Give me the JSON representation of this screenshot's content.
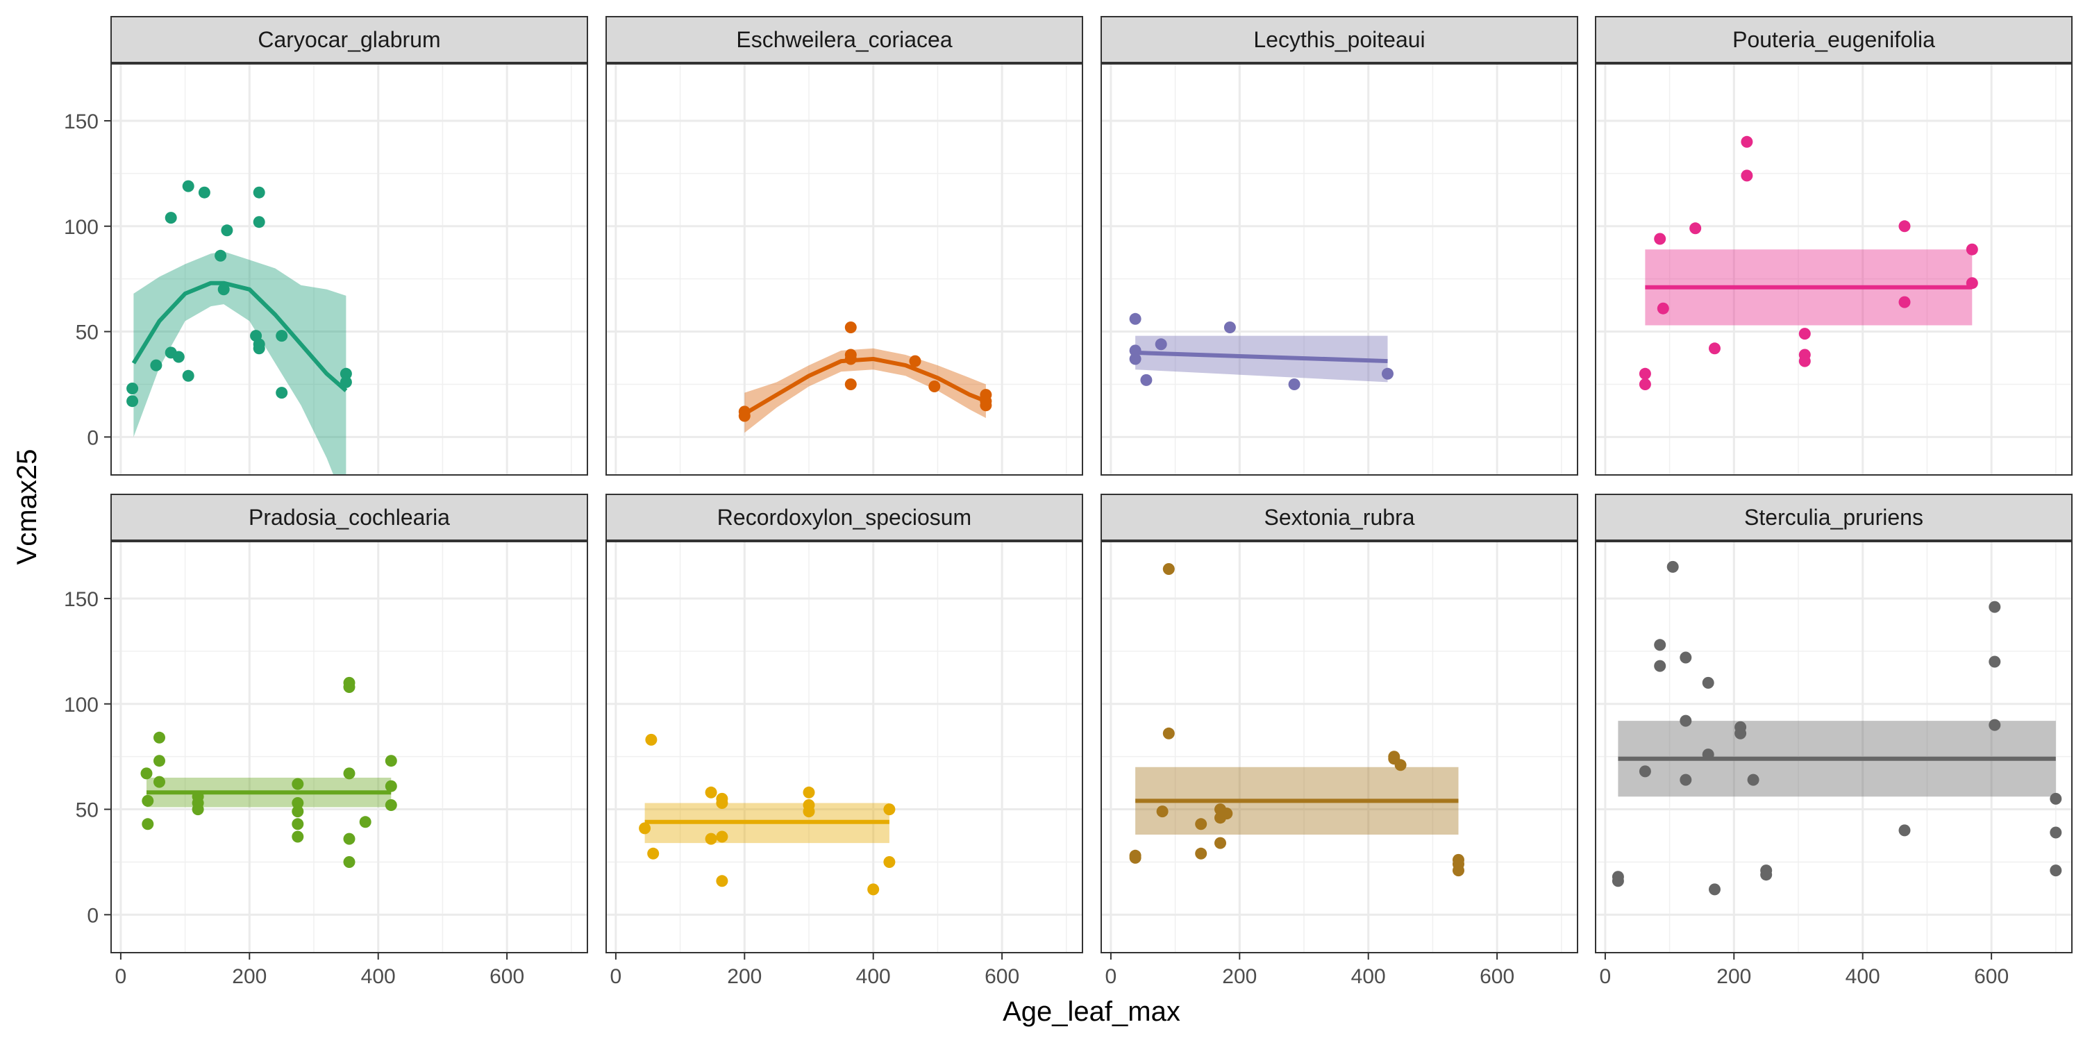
{
  "chart_data": {
    "type": "scatter",
    "xlabel": "Age_leaf_max",
    "ylabel": "Vcmax25",
    "xlim": [
      -15,
      725
    ],
    "ylim": [
      -18,
      177
    ],
    "x_ticks": [
      0,
      200,
      400,
      600
    ],
    "y_ticks": [
      0,
      50,
      100,
      150
    ],
    "grid": true,
    "theme": "bw",
    "legend": "none",
    "facets": [
      {
        "title": "Caryocar_glabrum",
        "color": "#1B9E77",
        "points": [
          [
            18,
            23
          ],
          [
            18,
            17
          ],
          [
            55,
            34
          ],
          [
            78,
            40
          ],
          [
            78,
            104
          ],
          [
            90,
            38
          ],
          [
            105,
            29
          ],
          [
            105,
            119
          ],
          [
            130,
            116
          ],
          [
            155,
            86
          ],
          [
            160,
            70
          ],
          [
            165,
            98
          ],
          [
            210,
            48
          ],
          [
            215,
            102
          ],
          [
            215,
            116
          ],
          [
            215,
            44
          ],
          [
            215,
            42
          ],
          [
            250,
            48
          ],
          [
            250,
            21
          ],
          [
            350,
            30
          ],
          [
            350,
            26
          ]
        ],
        "fit": {
          "method": "loess",
          "x": [
            20,
            60,
            100,
            140,
            160,
            200,
            240,
            280,
            320,
            350
          ],
          "y": [
            35,
            55,
            68,
            73,
            73,
            70,
            58,
            44,
            30,
            22
          ],
          "lo": [
            0,
            33,
            55,
            62,
            63,
            55,
            35,
            15,
            -10,
            -33
          ],
          "hi": [
            68,
            76,
            82,
            87,
            88,
            84,
            80,
            72,
            70,
            67
          ]
        }
      },
      {
        "title": "Eschweilera_coriacea",
        "color": "#D95F02",
        "points": [
          [
            200,
            12
          ],
          [
            200,
            10
          ],
          [
            365,
            52
          ],
          [
            365,
            37
          ],
          [
            365,
            39
          ],
          [
            365,
            25
          ],
          [
            465,
            36
          ],
          [
            495,
            24
          ],
          [
            575,
            20
          ],
          [
            575,
            15
          ],
          [
            575,
            17
          ]
        ],
        "fit": {
          "method": "loess",
          "x": [
            200,
            250,
            300,
            350,
            400,
            450,
            500,
            550,
            575
          ],
          "y": [
            11,
            20,
            29,
            36,
            37,
            34,
            28,
            20,
            17
          ],
          "lo": [
            2,
            14,
            24,
            31,
            32,
            29,
            22,
            13,
            9
          ],
          "hi": [
            21,
            26,
            34,
            41,
            42,
            39,
            34,
            28,
            25
          ]
        }
      },
      {
        "title": "Lecythis_poiteaui",
        "color": "#7570B3",
        "points": [
          [
            38,
            56
          ],
          [
            38,
            41
          ],
          [
            38,
            37
          ],
          [
            55,
            27
          ],
          [
            78,
            44
          ],
          [
            185,
            52
          ],
          [
            285,
            25
          ],
          [
            430,
            30
          ]
        ],
        "fit": {
          "method": "lm",
          "x": [
            38,
            430
          ],
          "y": [
            40,
            36
          ],
          "lo": [
            32,
            26
          ],
          "hi": [
            48,
            48
          ]
        }
      },
      {
        "title": "Pouteria_eugenifolia",
        "color": "#E7298A",
        "points": [
          [
            62,
            30
          ],
          [
            62,
            25
          ],
          [
            85,
            94
          ],
          [
            90,
            61
          ],
          [
            140,
            99
          ],
          [
            170,
            42
          ],
          [
            220,
            140
          ],
          [
            220,
            124
          ],
          [
            310,
            49
          ],
          [
            310,
            39
          ],
          [
            310,
            36
          ],
          [
            465,
            100
          ],
          [
            465,
            64
          ],
          [
            570,
            89
          ],
          [
            570,
            73
          ]
        ],
        "fit": {
          "method": "lm",
          "x": [
            62,
            570
          ],
          "y": [
            71,
            71
          ],
          "lo": [
            53,
            53
          ],
          "hi": [
            89,
            89
          ]
        }
      },
      {
        "title": "Pradosia_cochlearia",
        "color": "#66A61E",
        "points": [
          [
            40,
            67
          ],
          [
            42,
            43
          ],
          [
            42,
            54
          ],
          [
            60,
            84
          ],
          [
            60,
            73
          ],
          [
            60,
            63
          ],
          [
            120,
            56
          ],
          [
            120,
            53
          ],
          [
            120,
            50
          ],
          [
            275,
            62
          ],
          [
            275,
            53
          ],
          [
            275,
            49
          ],
          [
            275,
            43
          ],
          [
            275,
            37
          ],
          [
            355,
            110
          ],
          [
            355,
            108
          ],
          [
            355,
            67
          ],
          [
            355,
            36
          ],
          [
            355,
            25
          ],
          [
            380,
            44
          ],
          [
            420,
            73
          ],
          [
            420,
            61
          ],
          [
            420,
            52
          ]
        ],
        "fit": {
          "method": "lm",
          "x": [
            40,
            420
          ],
          "y": [
            58,
            58
          ],
          "lo": [
            51,
            51
          ],
          "hi": [
            65,
            65
          ]
        }
      },
      {
        "title": "Recordoxylon_speciosum",
        "color": "#E6AB02",
        "points": [
          [
            45,
            41
          ],
          [
            55,
            83
          ],
          [
            58,
            29
          ],
          [
            148,
            58
          ],
          [
            148,
            36
          ],
          [
            165,
            55
          ],
          [
            165,
            53
          ],
          [
            165,
            37
          ],
          [
            165,
            16
          ],
          [
            300,
            58
          ],
          [
            300,
            52
          ],
          [
            300,
            49
          ],
          [
            400,
            12
          ],
          [
            425,
            50
          ],
          [
            425,
            25
          ]
        ],
        "fit": {
          "method": "lm",
          "x": [
            45,
            425
          ],
          "y": [
            44,
            44
          ],
          "lo": [
            34,
            34
          ],
          "hi": [
            53,
            53
          ]
        }
      },
      {
        "title": "Sextonia_rubra",
        "color": "#A6761D",
        "points": [
          [
            38,
            28
          ],
          [
            38,
            27
          ],
          [
            80,
            49
          ],
          [
            90,
            164
          ],
          [
            90,
            86
          ],
          [
            140,
            43
          ],
          [
            140,
            29
          ],
          [
            170,
            50
          ],
          [
            170,
            46
          ],
          [
            170,
            34
          ],
          [
            180,
            48
          ],
          [
            440,
            74
          ],
          [
            440,
            75
          ],
          [
            450,
            71
          ],
          [
            540,
            26
          ],
          [
            540,
            24
          ],
          [
            540,
            21
          ]
        ],
        "fit": {
          "method": "lm",
          "x": [
            38,
            540
          ],
          "y": [
            54,
            54
          ],
          "lo": [
            38,
            38
          ],
          "hi": [
            70,
            70
          ]
        }
      },
      {
        "title": "Sterculia_pruriens",
        "color": "#666666",
        "points": [
          [
            20,
            18
          ],
          [
            20,
            16
          ],
          [
            62,
            68
          ],
          [
            85,
            128
          ],
          [
            85,
            118
          ],
          [
            105,
            165
          ],
          [
            125,
            122
          ],
          [
            125,
            92
          ],
          [
            125,
            64
          ],
          [
            160,
            110
          ],
          [
            160,
            76
          ],
          [
            170,
            12
          ],
          [
            210,
            89
          ],
          [
            210,
            86
          ],
          [
            230,
            64
          ],
          [
            250,
            21
          ],
          [
            250,
            19
          ],
          [
            465,
            40
          ],
          [
            605,
            146
          ],
          [
            605,
            120
          ],
          [
            605,
            90
          ],
          [
            700,
            55
          ],
          [
            700,
            39
          ],
          [
            700,
            21
          ]
        ],
        "fit": {
          "method": "lm",
          "x": [
            20,
            700
          ],
          "y": [
            74,
            74
          ],
          "lo": [
            56,
            56
          ],
          "hi": [
            92,
            92
          ]
        }
      }
    ]
  }
}
